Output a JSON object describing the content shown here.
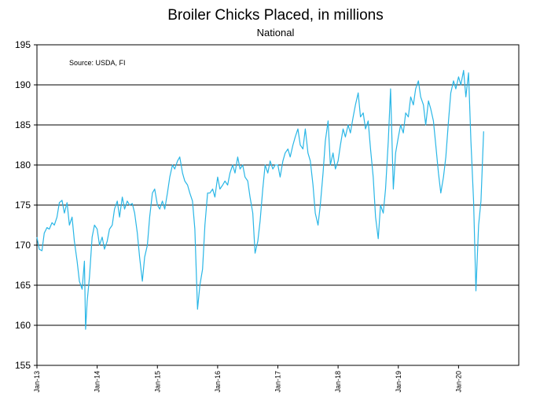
{
  "chart_data": {
    "type": "line",
    "title": "Broiler Chicks Placed, in millions",
    "subtitle": "National",
    "annotation": "Source: USDA, FI",
    "xlabel": "",
    "ylabel": "",
    "ylim": [
      155,
      195
    ],
    "yticks": [
      155,
      160,
      165,
      170,
      175,
      180,
      185,
      190,
      195
    ],
    "xlim": [
      "2013-01",
      "2021-01"
    ],
    "xticks": [
      {
        "date": "2013-01",
        "label": "Jan-13"
      },
      {
        "date": "2014-01",
        "label": "Jan-14"
      },
      {
        "date": "2015-01",
        "label": "Jan-15"
      },
      {
        "date": "2016-01",
        "label": "Jan-16"
      },
      {
        "date": "2017-01",
        "label": "Jan-17"
      },
      {
        "date": "2018-01",
        "label": "Jan-18"
      },
      {
        "date": "2019-01",
        "label": "Jan-19"
      },
      {
        "date": "2020-01",
        "label": "Jan-20"
      }
    ],
    "grid": "horizontal",
    "legend": "none",
    "series": [
      {
        "color": "#29b6e6",
        "points": [
          [
            "2013-01",
            171.0
          ],
          [
            "2013-01-15",
            169.5
          ],
          [
            "2013-02",
            169.3
          ],
          [
            "2013-02-15",
            171.5
          ],
          [
            "2013-03",
            172.2
          ],
          [
            "2013-03-15",
            172.0
          ],
          [
            "2013-04",
            172.8
          ],
          [
            "2013-04-15",
            172.5
          ],
          [
            "2013-05",
            173.5
          ],
          [
            "2013-05-15",
            175.3
          ],
          [
            "2013-06",
            175.6
          ],
          [
            "2013-06-15",
            174.0
          ],
          [
            "2013-07",
            175.3
          ],
          [
            "2013-07-15",
            172.5
          ],
          [
            "2013-08",
            173.5
          ],
          [
            "2013-08-15",
            170.5
          ],
          [
            "2013-09",
            168.0
          ],
          [
            "2013-09-15",
            165.5
          ],
          [
            "2013-10",
            164.5
          ],
          [
            "2013-10-15",
            168.0
          ],
          [
            "2013-10-22",
            159.5
          ],
          [
            "2013-11",
            163.0
          ],
          [
            "2013-11-15",
            166.0
          ],
          [
            "2013-12",
            171.0
          ],
          [
            "2013-12-15",
            172.5
          ],
          [
            "2014-01",
            172.0
          ],
          [
            "2014-01-15",
            170.0
          ],
          [
            "2014-02",
            171.0
          ],
          [
            "2014-02-15",
            169.5
          ],
          [
            "2014-03",
            170.5
          ],
          [
            "2014-03-15",
            172.0
          ],
          [
            "2014-04",
            172.5
          ],
          [
            "2014-04-15",
            174.5
          ],
          [
            "2014-05",
            175.5
          ],
          [
            "2014-05-15",
            173.5
          ],
          [
            "2014-06",
            176.0
          ],
          [
            "2014-06-15",
            174.5
          ],
          [
            "2014-07",
            175.5
          ],
          [
            "2014-07-15",
            175.0
          ],
          [
            "2014-08",
            175.2
          ],
          [
            "2014-08-15",
            174.0
          ],
          [
            "2014-09",
            171.5
          ],
          [
            "2014-09-15",
            168.5
          ],
          [
            "2014-10",
            165.5
          ],
          [
            "2014-10-15",
            168.5
          ],
          [
            "2014-11",
            170.0
          ],
          [
            "2014-11-15",
            173.5
          ],
          [
            "2014-12",
            176.5
          ],
          [
            "2014-12-15",
            177.0
          ],
          [
            "2015-01",
            175.0
          ],
          [
            "2015-01-15",
            174.5
          ],
          [
            "2015-02",
            175.5
          ],
          [
            "2015-02-15",
            174.5
          ],
          [
            "2015-03",
            176.5
          ],
          [
            "2015-03-15",
            178.5
          ],
          [
            "2015-04",
            180.0
          ],
          [
            "2015-04-15",
            179.5
          ],
          [
            "2015-05",
            180.5
          ],
          [
            "2015-05-15",
            181.0
          ],
          [
            "2015-06",
            179.0
          ],
          [
            "2015-06-15",
            178.0
          ],
          [
            "2015-07",
            177.5
          ],
          [
            "2015-07-15",
            176.5
          ],
          [
            "2015-08",
            175.5
          ],
          [
            "2015-08-15",
            172.0
          ],
          [
            "2015-09",
            162.0
          ],
          [
            "2015-09-15",
            165.0
          ],
          [
            "2015-10",
            167.0
          ],
          [
            "2015-10-15",
            172.5
          ],
          [
            "2015-11",
            176.5
          ],
          [
            "2015-11-15",
            176.5
          ],
          [
            "2015-12",
            177.0
          ],
          [
            "2015-12-15",
            176.0
          ],
          [
            "2016-01",
            178.5
          ],
          [
            "2016-01-15",
            177.0
          ],
          [
            "2016-02",
            177.5
          ],
          [
            "2016-02-15",
            178.0
          ],
          [
            "2016-03",
            177.5
          ],
          [
            "2016-03-15",
            179.0
          ],
          [
            "2016-04",
            180.0
          ],
          [
            "2016-04-15",
            179.0
          ],
          [
            "2016-05",
            181.0
          ],
          [
            "2016-05-15",
            179.5
          ],
          [
            "2016-06",
            180.0
          ],
          [
            "2016-06-15",
            178.5
          ],
          [
            "2016-07",
            178.0
          ],
          [
            "2016-07-15",
            176.0
          ],
          [
            "2016-08",
            174.0
          ],
          [
            "2016-08-15",
            169.0
          ],
          [
            "2016-09",
            170.5
          ],
          [
            "2016-09-15",
            173.0
          ],
          [
            "2016-10",
            177.0
          ],
          [
            "2016-10-15",
            180.0
          ],
          [
            "2016-11",
            179.0
          ],
          [
            "2016-11-15",
            180.5
          ],
          [
            "2016-12",
            179.5
          ],
          [
            "2016-12-15",
            180.0
          ],
          [
            "2017-01",
            180.0
          ],
          [
            "2017-01-15",
            178.5
          ],
          [
            "2017-02",
            180.5
          ],
          [
            "2017-02-15",
            181.5
          ],
          [
            "2017-03",
            182.0
          ],
          [
            "2017-03-15",
            181.0
          ],
          [
            "2017-04",
            182.5
          ],
          [
            "2017-04-15",
            183.5
          ],
          [
            "2017-05",
            184.5
          ],
          [
            "2017-05-15",
            182.5
          ],
          [
            "2017-06",
            182.0
          ],
          [
            "2017-06-15",
            184.5
          ],
          [
            "2017-07",
            181.5
          ],
          [
            "2017-07-15",
            180.5
          ],
          [
            "2017-08",
            177.5
          ],
          [
            "2017-08-15",
            174.0
          ],
          [
            "2017-09",
            172.5
          ],
          [
            "2017-09-15",
            175.0
          ],
          [
            "2017-10",
            179.0
          ],
          [
            "2017-10-15",
            183.0
          ],
          [
            "2017-11",
            185.5
          ],
          [
            "2017-11-15",
            180.0
          ],
          [
            "2017-12",
            181.5
          ],
          [
            "2017-12-15",
            179.5
          ],
          [
            "2018-01",
            180.5
          ],
          [
            "2018-01-15",
            182.5
          ],
          [
            "2018-02",
            184.5
          ],
          [
            "2018-02-15",
            183.5
          ],
          [
            "2018-03",
            185.0
          ],
          [
            "2018-03-15",
            184.0
          ],
          [
            "2018-04",
            186.0
          ],
          [
            "2018-04-15",
            187.5
          ],
          [
            "2018-05",
            189.0
          ],
          [
            "2018-05-15",
            186.0
          ],
          [
            "2018-06",
            186.5
          ],
          [
            "2018-06-15",
            184.5
          ],
          [
            "2018-07",
            185.5
          ],
          [
            "2018-07-15",
            182.0
          ],
          [
            "2018-08",
            178.5
          ],
          [
            "2018-08-15",
            173.5
          ],
          [
            "2018-09",
            170.8
          ],
          [
            "2018-09-15",
            175.0
          ],
          [
            "2018-10",
            174.0
          ],
          [
            "2018-10-15",
            177.0
          ],
          [
            "2018-11",
            183.0
          ],
          [
            "2018-11-15",
            189.5
          ],
          [
            "2018-12",
            177.0
          ],
          [
            "2018-12-15",
            181.5
          ],
          [
            "2019-01",
            183.5
          ],
          [
            "2019-01-15",
            185.0
          ],
          [
            "2019-02",
            184.0
          ],
          [
            "2019-02-15",
            186.5
          ],
          [
            "2019-03",
            186.0
          ],
          [
            "2019-03-15",
            188.5
          ],
          [
            "2019-04",
            187.5
          ],
          [
            "2019-04-15",
            189.5
          ],
          [
            "2019-05",
            190.5
          ],
          [
            "2019-05-15",
            188.5
          ],
          [
            "2019-06",
            187.5
          ],
          [
            "2019-06-15",
            185.0
          ],
          [
            "2019-07",
            188.0
          ],
          [
            "2019-07-15",
            187.0
          ],
          [
            "2019-08",
            185.5
          ],
          [
            "2019-08-15",
            182.5
          ],
          [
            "2019-09",
            179.0
          ],
          [
            "2019-09-15",
            176.5
          ],
          [
            "2019-10",
            178.5
          ],
          [
            "2019-10-15",
            181.0
          ],
          [
            "2019-11",
            185.5
          ],
          [
            "2019-11-15",
            189.0
          ],
          [
            "2019-12",
            190.5
          ],
          [
            "2019-12-15",
            189.5
          ],
          [
            "2020-01",
            191.0
          ],
          [
            "2020-01-15",
            190.0
          ],
          [
            "2020-02",
            191.8
          ],
          [
            "2020-02-15",
            188.5
          ],
          [
            "2020-03",
            191.5
          ],
          [
            "2020-03-15",
            183.0
          ],
          [
            "2020-04",
            175.5
          ],
          [
            "2020-04-15",
            164.3
          ],
          [
            "2020-05",
            172.5
          ],
          [
            "2020-05-15",
            175.5
          ],
          [
            "2020-06",
            184.2
          ]
        ]
      }
    ]
  }
}
